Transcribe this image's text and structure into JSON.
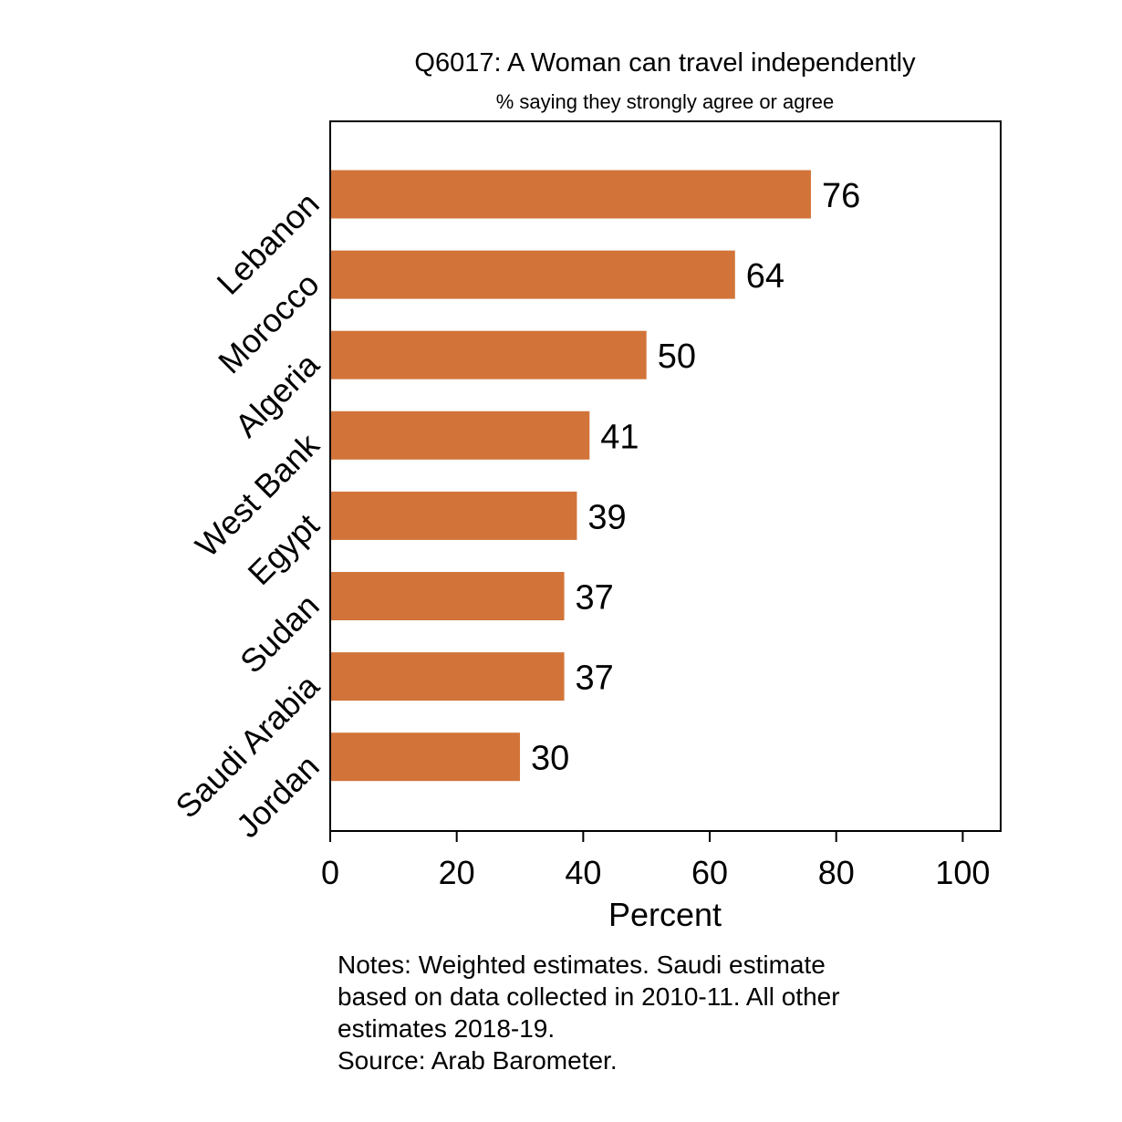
{
  "chart_data": {
    "type": "bar",
    "orientation": "horizontal",
    "title": "Q6017: A Woman can travel independently",
    "subtitle": "% saying they strongly agree or agree",
    "categories": [
      "Lebanon",
      "Morocco",
      "Algeria",
      "West Bank",
      "Egypt",
      "Sudan",
      "Saudi Arabia",
      "Jordan"
    ],
    "values": [
      76,
      64,
      50,
      41,
      39,
      37,
      37,
      30
    ],
    "data_labels": [
      "76",
      "64",
      "50",
      "41",
      "39",
      "37",
      "37",
      "30"
    ],
    "xlabel": "Percent",
    "ylabel": "",
    "xlim": [
      0,
      106
    ],
    "xticks": [
      0,
      20,
      40,
      60,
      80,
      100
    ],
    "bar_color": "#D2743A",
    "grid": false,
    "legend": "none"
  },
  "notes": {
    "lines": [
      "Notes: Weighted estimates. Saudi estimate",
      "based on data collected in 2010-11. All other",
      "estimates 2018-19.",
      "Source: Arab Barometer."
    ]
  }
}
